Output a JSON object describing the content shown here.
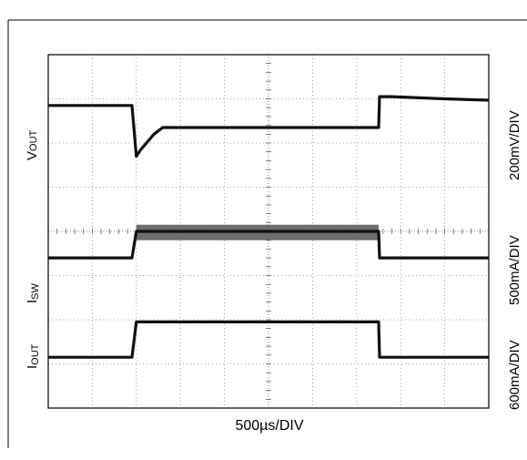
{
  "chart_data": {
    "type": "line",
    "title": "",
    "x_axis": {
      "label": "500µs/DIV",
      "divisions": 10,
      "unit": "ms",
      "range": [
        0,
        5
      ]
    },
    "y_axis": {
      "divisions": 8,
      "range": [
        -4,
        4
      ],
      "unit": "div"
    },
    "grid": true,
    "channels": [
      {
        "name_main": "V",
        "name_sub": "OUT",
        "scale": "200mV/DIV",
        "x": [
          0,
          0.95,
          1.0,
          1.05,
          1.2,
          1.3,
          1.5,
          2.0,
          3.0,
          3.6,
          3.75,
          3.76,
          3.9,
          4.5,
          5.0
        ],
        "y": [
          2.85,
          2.85,
          1.7,
          1.85,
          2.2,
          2.35,
          2.35,
          2.35,
          2.35,
          2.35,
          2.35,
          3.05,
          3.05,
          3.0,
          2.97
        ]
      },
      {
        "name_main": "I",
        "name_sub": "SW",
        "scale": "500mA/DIV",
        "x": [
          0,
          0.95,
          1.0,
          1.2,
          1.5,
          3.75,
          3.76,
          5.0
        ],
        "y": [
          -0.6,
          -0.6,
          0.0,
          0.0,
          0.0,
          0.0,
          -0.6,
          -0.6
        ],
        "noise_band": {
          "x": [
            1.0,
            3.75
          ],
          "y": [
            -0.2,
            0.15
          ]
        }
      },
      {
        "name_main": "I",
        "name_sub": "OUT",
        "scale": "600mA/DIV",
        "x": [
          0,
          0.95,
          1.0,
          3.75,
          3.76,
          5.0
        ],
        "y": [
          -2.85,
          -2.85,
          -2.05,
          -2.05,
          -2.85,
          -2.85
        ]
      }
    ]
  }
}
